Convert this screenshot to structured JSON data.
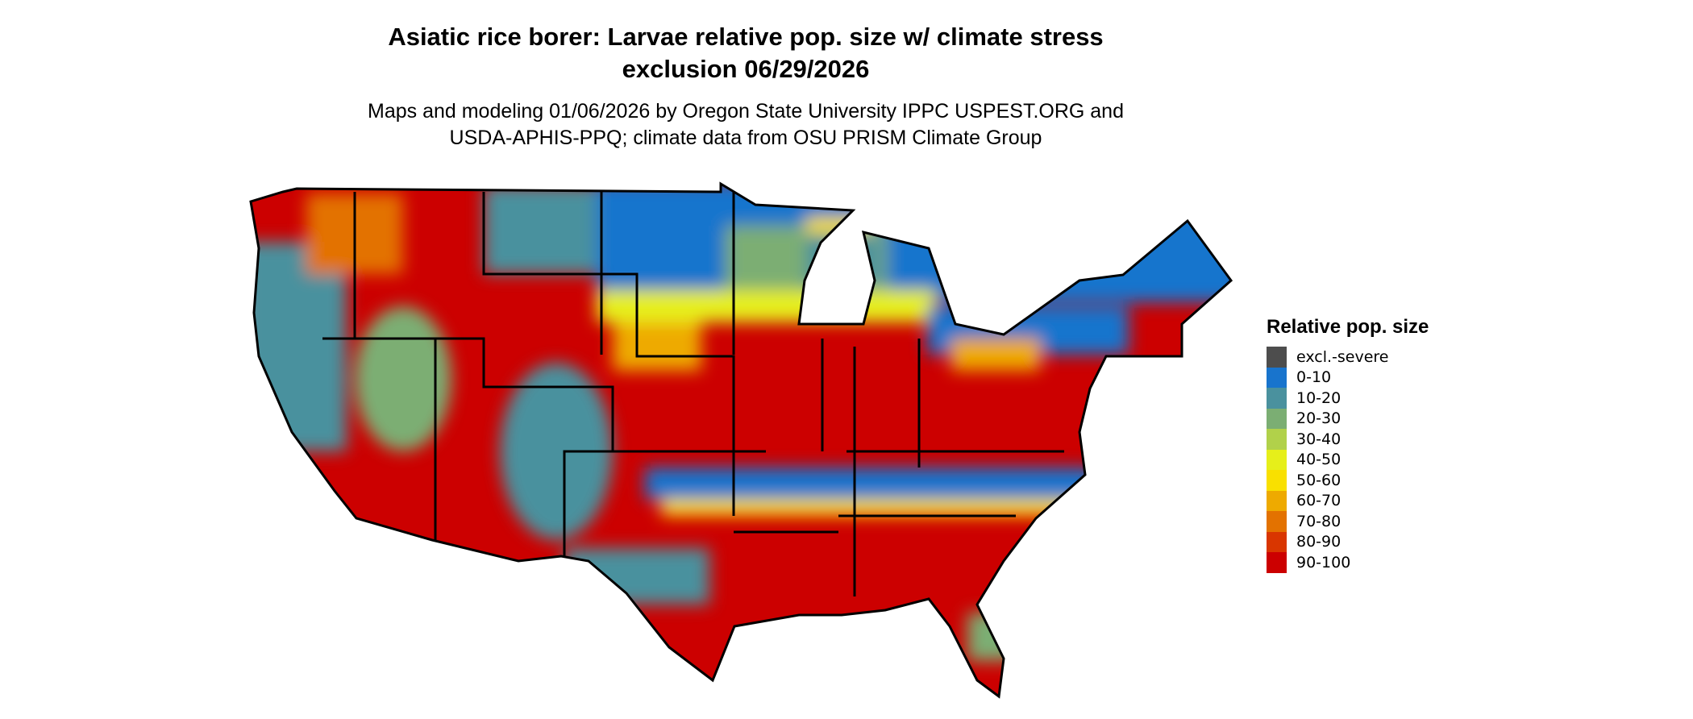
{
  "title_line1": "Asiatic rice borer: Larvae relative pop. size w/ climate stress",
  "title_line2": "exclusion 06/29/2026",
  "subtitle_line1": "Maps and modeling 01/06/2026 by Oregon State University IPPC USPEST.ORG and",
  "subtitle_line2": "USDA-APHIS-PPQ; climate data from OSU PRISM Climate Group",
  "legend": {
    "title": "Relative pop. size",
    "items": [
      {
        "label": "excl.-severe",
        "color": "#4d4d4d"
      },
      {
        "label": "0-10",
        "color": "#1874cd"
      },
      {
        "label": "10-20",
        "color": "#4a919e"
      },
      {
        "label": "20-30",
        "color": "#7bae73"
      },
      {
        "label": "30-40",
        "color": "#b1d14a"
      },
      {
        "label": "40-50",
        "color": "#e6ef1a"
      },
      {
        "label": "50-60",
        "color": "#f9e000"
      },
      {
        "label": "60-70",
        "color": "#eeaa00"
      },
      {
        "label": "70-80",
        "color": "#e37200"
      },
      {
        "label": "80-90",
        "color": "#d93600"
      },
      {
        "label": "90-100",
        "color": "#cc0000"
      }
    ]
  }
}
